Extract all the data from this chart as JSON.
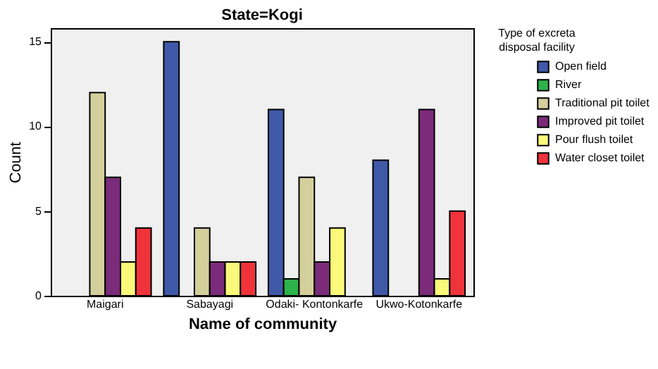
{
  "chart_data": {
    "type": "bar",
    "title": "State=Kogi",
    "xlabel": "Name of community",
    "ylabel": "Count",
    "legend_title": "Type of excreta disposal facility",
    "categories": [
      "Maigari",
      "Sabayagi",
      "Odaki- Kontonkarfe",
      "Ukwo-Kotonkarfe"
    ],
    "series": [
      {
        "name": "Open field",
        "color": "#3f59a8",
        "values": [
          null,
          15,
          11,
          8
        ]
      },
      {
        "name": "River",
        "color": "#2db34a",
        "values": [
          null,
          null,
          1,
          null
        ]
      },
      {
        "name": "Traditional pit toilet",
        "color": "#d4d09c",
        "values": [
          12,
          4,
          7,
          null
        ]
      },
      {
        "name": "Improved pit toilet",
        "color": "#7b2b7a",
        "values": [
          7,
          2,
          2,
          11
        ]
      },
      {
        "name": "Pour flush toilet",
        "color": "#fbf979",
        "values": [
          2,
          2,
          4,
          1
        ]
      },
      {
        "name": "Water closet toilet",
        "color": "#f0333b",
        "values": [
          4,
          2,
          null,
          5
        ]
      }
    ],
    "ylim": [
      0,
      15.8
    ],
    "yticks": [
      0,
      5,
      10,
      15
    ],
    "grid": false,
    "legend": "right"
  }
}
